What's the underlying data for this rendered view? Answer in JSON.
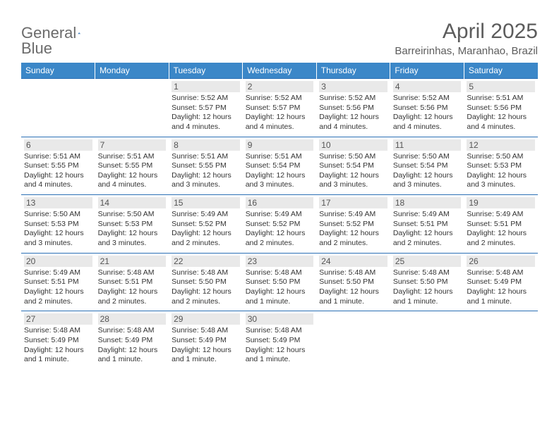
{
  "brand": {
    "general": "General",
    "blue": "Blue"
  },
  "title": "April 2025",
  "location": "Barreirinhas, Maranhao, Brazil",
  "colors": {
    "header_bg": "#3b87c8",
    "border": "#2a6fb5",
    "daynum_bg": "#e9e9e9",
    "text": "#333333",
    "muted": "#5c5c5c"
  },
  "weekdays": [
    "Sunday",
    "Monday",
    "Tuesday",
    "Wednesday",
    "Thursday",
    "Friday",
    "Saturday"
  ],
  "weeks": [
    [
      null,
      null,
      {
        "n": "1",
        "sr": "Sunrise: 5:52 AM",
        "ss": "Sunset: 5:57 PM",
        "d1": "Daylight: 12 hours",
        "d2": "and 4 minutes."
      },
      {
        "n": "2",
        "sr": "Sunrise: 5:52 AM",
        "ss": "Sunset: 5:57 PM",
        "d1": "Daylight: 12 hours",
        "d2": "and 4 minutes."
      },
      {
        "n": "3",
        "sr": "Sunrise: 5:52 AM",
        "ss": "Sunset: 5:56 PM",
        "d1": "Daylight: 12 hours",
        "d2": "and 4 minutes."
      },
      {
        "n": "4",
        "sr": "Sunrise: 5:52 AM",
        "ss": "Sunset: 5:56 PM",
        "d1": "Daylight: 12 hours",
        "d2": "and 4 minutes."
      },
      {
        "n": "5",
        "sr": "Sunrise: 5:51 AM",
        "ss": "Sunset: 5:56 PM",
        "d1": "Daylight: 12 hours",
        "d2": "and 4 minutes."
      }
    ],
    [
      {
        "n": "6",
        "sr": "Sunrise: 5:51 AM",
        "ss": "Sunset: 5:55 PM",
        "d1": "Daylight: 12 hours",
        "d2": "and 4 minutes."
      },
      {
        "n": "7",
        "sr": "Sunrise: 5:51 AM",
        "ss": "Sunset: 5:55 PM",
        "d1": "Daylight: 12 hours",
        "d2": "and 4 minutes."
      },
      {
        "n": "8",
        "sr": "Sunrise: 5:51 AM",
        "ss": "Sunset: 5:55 PM",
        "d1": "Daylight: 12 hours",
        "d2": "and 3 minutes."
      },
      {
        "n": "9",
        "sr": "Sunrise: 5:51 AM",
        "ss": "Sunset: 5:54 PM",
        "d1": "Daylight: 12 hours",
        "d2": "and 3 minutes."
      },
      {
        "n": "10",
        "sr": "Sunrise: 5:50 AM",
        "ss": "Sunset: 5:54 PM",
        "d1": "Daylight: 12 hours",
        "d2": "and 3 minutes."
      },
      {
        "n": "11",
        "sr": "Sunrise: 5:50 AM",
        "ss": "Sunset: 5:54 PM",
        "d1": "Daylight: 12 hours",
        "d2": "and 3 minutes."
      },
      {
        "n": "12",
        "sr": "Sunrise: 5:50 AM",
        "ss": "Sunset: 5:53 PM",
        "d1": "Daylight: 12 hours",
        "d2": "and 3 minutes."
      }
    ],
    [
      {
        "n": "13",
        "sr": "Sunrise: 5:50 AM",
        "ss": "Sunset: 5:53 PM",
        "d1": "Daylight: 12 hours",
        "d2": "and 3 minutes."
      },
      {
        "n": "14",
        "sr": "Sunrise: 5:50 AM",
        "ss": "Sunset: 5:53 PM",
        "d1": "Daylight: 12 hours",
        "d2": "and 3 minutes."
      },
      {
        "n": "15",
        "sr": "Sunrise: 5:49 AM",
        "ss": "Sunset: 5:52 PM",
        "d1": "Daylight: 12 hours",
        "d2": "and 2 minutes."
      },
      {
        "n": "16",
        "sr": "Sunrise: 5:49 AM",
        "ss": "Sunset: 5:52 PM",
        "d1": "Daylight: 12 hours",
        "d2": "and 2 minutes."
      },
      {
        "n": "17",
        "sr": "Sunrise: 5:49 AM",
        "ss": "Sunset: 5:52 PM",
        "d1": "Daylight: 12 hours",
        "d2": "and 2 minutes."
      },
      {
        "n": "18",
        "sr": "Sunrise: 5:49 AM",
        "ss": "Sunset: 5:51 PM",
        "d1": "Daylight: 12 hours",
        "d2": "and 2 minutes."
      },
      {
        "n": "19",
        "sr": "Sunrise: 5:49 AM",
        "ss": "Sunset: 5:51 PM",
        "d1": "Daylight: 12 hours",
        "d2": "and 2 minutes."
      }
    ],
    [
      {
        "n": "20",
        "sr": "Sunrise: 5:49 AM",
        "ss": "Sunset: 5:51 PM",
        "d1": "Daylight: 12 hours",
        "d2": "and 2 minutes."
      },
      {
        "n": "21",
        "sr": "Sunrise: 5:48 AM",
        "ss": "Sunset: 5:51 PM",
        "d1": "Daylight: 12 hours",
        "d2": "and 2 minutes."
      },
      {
        "n": "22",
        "sr": "Sunrise: 5:48 AM",
        "ss": "Sunset: 5:50 PM",
        "d1": "Daylight: 12 hours",
        "d2": "and 2 minutes."
      },
      {
        "n": "23",
        "sr": "Sunrise: 5:48 AM",
        "ss": "Sunset: 5:50 PM",
        "d1": "Daylight: 12 hours",
        "d2": "and 1 minute."
      },
      {
        "n": "24",
        "sr": "Sunrise: 5:48 AM",
        "ss": "Sunset: 5:50 PM",
        "d1": "Daylight: 12 hours",
        "d2": "and 1 minute."
      },
      {
        "n": "25",
        "sr": "Sunrise: 5:48 AM",
        "ss": "Sunset: 5:50 PM",
        "d1": "Daylight: 12 hours",
        "d2": "and 1 minute."
      },
      {
        "n": "26",
        "sr": "Sunrise: 5:48 AM",
        "ss": "Sunset: 5:49 PM",
        "d1": "Daylight: 12 hours",
        "d2": "and 1 minute."
      }
    ],
    [
      {
        "n": "27",
        "sr": "Sunrise: 5:48 AM",
        "ss": "Sunset: 5:49 PM",
        "d1": "Daylight: 12 hours",
        "d2": "and 1 minute."
      },
      {
        "n": "28",
        "sr": "Sunrise: 5:48 AM",
        "ss": "Sunset: 5:49 PM",
        "d1": "Daylight: 12 hours",
        "d2": "and 1 minute."
      },
      {
        "n": "29",
        "sr": "Sunrise: 5:48 AM",
        "ss": "Sunset: 5:49 PM",
        "d1": "Daylight: 12 hours",
        "d2": "and 1 minute."
      },
      {
        "n": "30",
        "sr": "Sunrise: 5:48 AM",
        "ss": "Sunset: 5:49 PM",
        "d1": "Daylight: 12 hours",
        "d2": "and 1 minute."
      },
      null,
      null,
      null
    ]
  ]
}
